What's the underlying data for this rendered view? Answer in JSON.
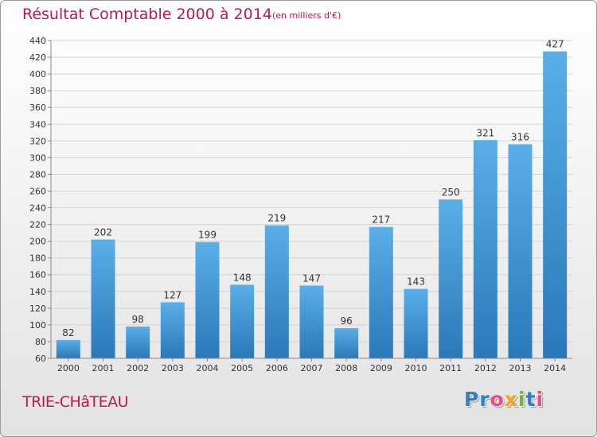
{
  "title": "Résultat Comptable 2000 à 2014",
  "subtitle": "(en milliers d'€)",
  "commune": "TRIE-CHâTEAU",
  "logo": {
    "text": "Proxiti",
    "letters": [
      "P",
      "r",
      "o",
      "x",
      "i",
      "t",
      "i"
    ],
    "colors": [
      "#2e7fc4",
      "#2e7fc4",
      "#e84d8a",
      "#f2a21b",
      "#6cb33f",
      "#2e7fc4",
      "#e84d8a"
    ]
  },
  "colors": {
    "accent": "#c0174e",
    "bar_top": "#5aafe8",
    "bar_bottom": "#2a78b8"
  },
  "chart_data": {
    "type": "bar",
    "categories": [
      "2000",
      "2001",
      "2002",
      "2003",
      "2004",
      "2005",
      "2006",
      "2007",
      "2008",
      "2009",
      "2010",
      "2011",
      "2012",
      "2013",
      "2014"
    ],
    "values": [
      82,
      202,
      98,
      127,
      199,
      148,
      219,
      147,
      96,
      217,
      143,
      250,
      321,
      316,
      427
    ],
    "ylim": [
      60,
      440
    ],
    "yticks": [
      60,
      80,
      100,
      120,
      140,
      160,
      180,
      200,
      220,
      240,
      260,
      280,
      300,
      320,
      340,
      360,
      380,
      400,
      420,
      440
    ],
    "grid": true,
    "data_labels": true
  }
}
